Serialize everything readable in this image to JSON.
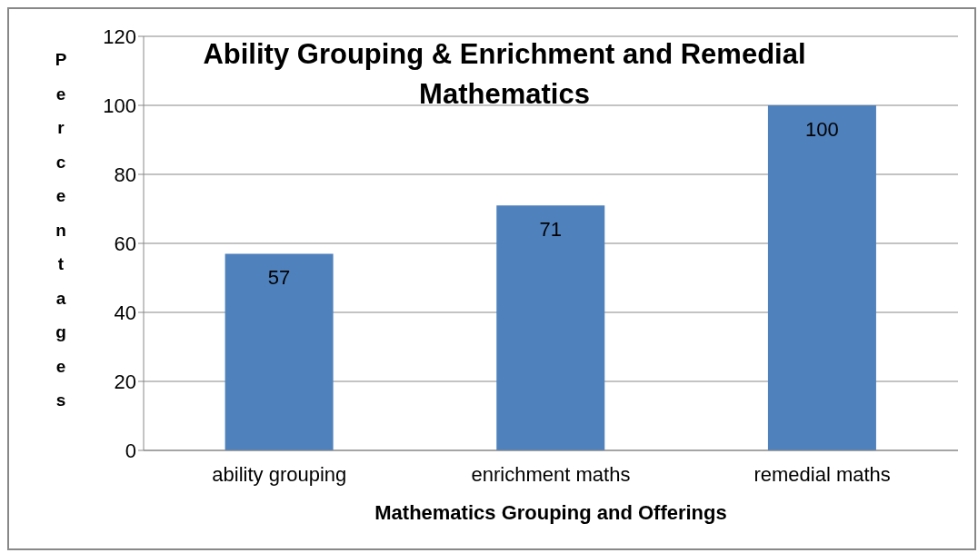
{
  "chart_data": {
    "type": "bar",
    "title": "Ability Grouping & Enrichment and Remedial Mathematics",
    "xlabel": "Mathematics Grouping and Offerings",
    "ylabel": "Percentages",
    "categories": [
      "ability grouping",
      "enrichment maths",
      "remedial maths"
    ],
    "values": [
      57,
      71,
      100
    ],
    "color": "#4f81bd",
    "ylim": [
      0,
      120
    ],
    "yticks": [
      0,
      20,
      40,
      60,
      80,
      100,
      120
    ],
    "grid": "y",
    "data_labels": true
  }
}
